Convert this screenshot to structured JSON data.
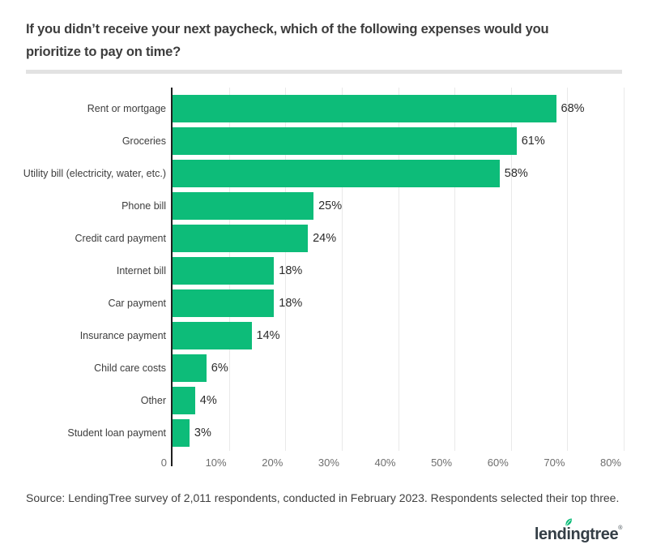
{
  "page": {
    "title_line1": "If you didn’t receive your next paycheck, which of the following expenses would you",
    "title_line2": "prioritize to pay on time?",
    "source": "Source: LendingTree survey of 2,011 respondents, conducted in February 2023. Respondents selected their top three.",
    "logo": {
      "pre": "lend",
      "i": "i",
      "post": "ngtree",
      "mark": "®"
    }
  },
  "colors": {
    "bar": "#0dbc79",
    "grid": "#e9e9e9",
    "axis": "#1f1f1f",
    "category_label": "#3d3d3d",
    "value_label": "#2b2b2b",
    "tick_label": "#6e6e6e",
    "title": "#3d3d3d",
    "divider": "#e2e2e2",
    "source": "#3f3f3f",
    "logo_text": "#343e46",
    "leaf": "#0dbc79"
  },
  "chart_data": {
    "type": "bar",
    "orientation": "horizontal",
    "title": "If you didn’t receive your next paycheck, which of the following expenses would you prioritize to pay on time?",
    "categories": [
      "Rent or mortgage",
      "Groceries",
      "Utility bill (electricity, water, etc.)",
      "Phone bill",
      "Credit card payment",
      "Internet bill",
      "Car payment",
      "Insurance payment",
      "Child care costs",
      "Other",
      "Student loan payment"
    ],
    "values": [
      68,
      61,
      58,
      25,
      24,
      18,
      18,
      14,
      6,
      4,
      3
    ],
    "value_labels": [
      "68%",
      "61%",
      "58%",
      "25%",
      "24%",
      "18%",
      "18%",
      "14%",
      "6%",
      "4%",
      "3%"
    ],
    "tick_values": [
      0,
      10,
      20,
      30,
      40,
      50,
      60,
      70,
      80
    ],
    "tick_labels": [
      "0",
      "10%",
      "20%",
      "30%",
      "40%",
      "50%",
      "60%",
      "70%",
      "80%"
    ],
    "xlim": [
      0,
      80
    ],
    "grid": true,
    "legend": "none"
  }
}
